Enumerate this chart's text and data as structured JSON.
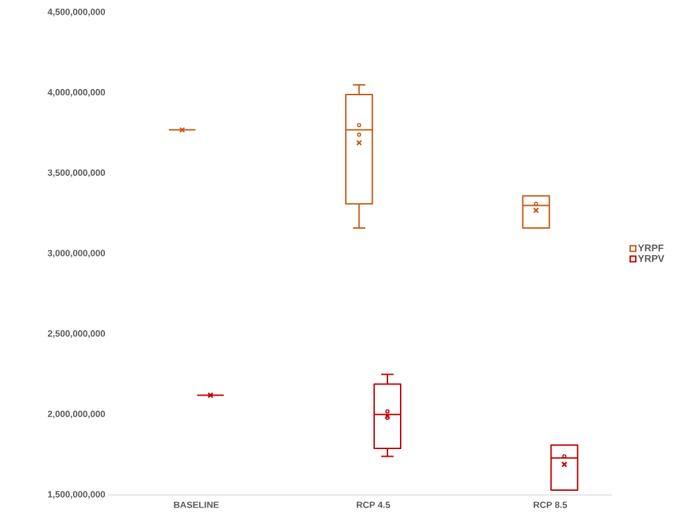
{
  "chart_data": {
    "type": "box",
    "categories": [
      "BASELINE",
      "RCP 4.5",
      "RCP 8.5"
    ],
    "series": [
      {
        "name": "YRPF",
        "color": "#c55a11",
        "boxes": [
          {
            "low": 3770000000,
            "q1": 3770000000,
            "median": 3770000000,
            "q3": 3770000000,
            "high": 3770000000,
            "mean": 3770000000
          },
          {
            "low": 3160000000,
            "q1": 3310000000,
            "median": 3770000000,
            "q3": 3990000000,
            "high": 4050000000,
            "mean": 3690000000,
            "outliers": [
              3800000000,
              3740000000
            ]
          },
          {
            "low": 3160000000,
            "q1": 3160000000,
            "median": 3300000000,
            "q3": 3360000000,
            "high": 3360000000,
            "mean": 3270000000,
            "outliers": [
              3310000000
            ]
          }
        ]
      },
      {
        "name": "YRPV",
        "color": "#c00000",
        "boxes": [
          {
            "low": 2120000000,
            "q1": 2120000000,
            "median": 2120000000,
            "q3": 2120000000,
            "high": 2120000000,
            "mean": 2120000000
          },
          {
            "low": 1740000000,
            "q1": 1790000000,
            "median": 2000000000,
            "q3": 2190000000,
            "high": 2250000000,
            "mean": 1990000000,
            "outliers": [
              2020000000,
              1980000000
            ]
          },
          {
            "low": 1530000000,
            "q1": 1530000000,
            "median": 1730000000,
            "q3": 1810000000,
            "high": 1810000000,
            "mean": 1690000000,
            "outliers": [
              1740000000
            ]
          }
        ]
      }
    ],
    "ylim": [
      1500000000,
      4500000000
    ],
    "yticks": [
      {
        "value": 1500000000,
        "label": "1,500,000,000"
      },
      {
        "value": 2000000000,
        "label": "2,000,000,000"
      },
      {
        "value": 2500000000,
        "label": "2,500,000,000"
      },
      {
        "value": 3000000000,
        "label": "3,000,000,000"
      },
      {
        "value": 3500000000,
        "label": "3,500,000,000"
      },
      {
        "value": 4000000000,
        "label": "4,000,000,000"
      },
      {
        "value": 4500000000,
        "label": "4,500,000,000"
      }
    ],
    "legend": "right",
    "grid": false
  }
}
